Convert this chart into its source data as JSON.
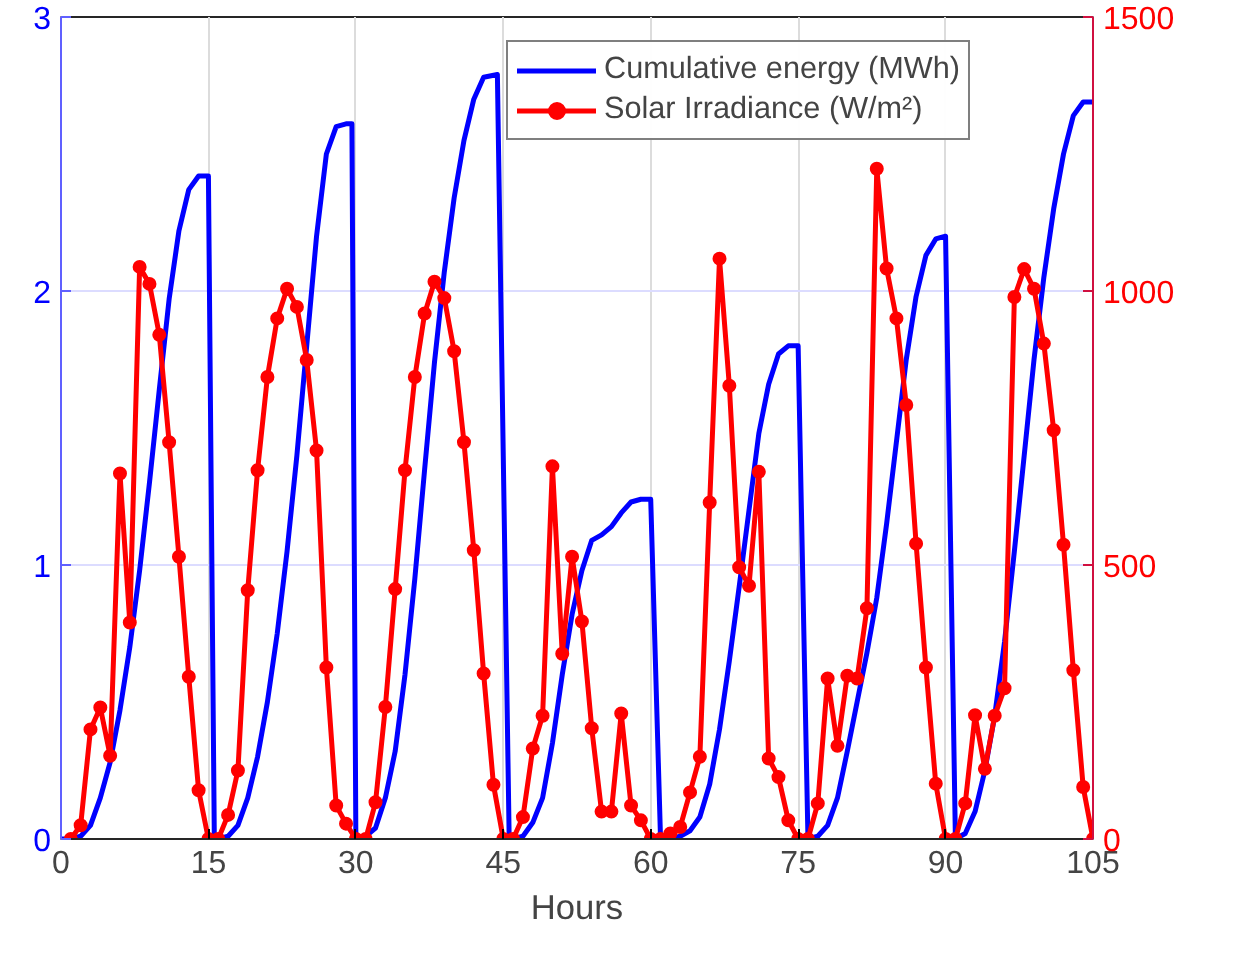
{
  "chart_data": {
    "type": "line",
    "xlabel": "Hours",
    "xlim": [
      0,
      105
    ],
    "xticks": [
      0,
      15,
      30,
      45,
      60,
      75,
      90,
      105
    ],
    "ylim": [
      0,
      3
    ],
    "yticks": [
      0,
      1,
      2,
      3
    ],
    "y2lim": [
      0,
      1500
    ],
    "y2ticks": [
      0,
      500,
      1000,
      1500
    ],
    "grid": true,
    "legend": "top right",
    "line_style": "solid",
    "series": [
      {
        "name": "Cumulative energy (MWh)",
        "color": "#0000ff",
        "marker": "none",
        "x": [
          0,
          1,
          2,
          3,
          4,
          5,
          6,
          7,
          8,
          9,
          10,
          11,
          12,
          13,
          14,
          15,
          15.6,
          16,
          17,
          18,
          19,
          20,
          21,
          22,
          23,
          24,
          25,
          26,
          27,
          28,
          29,
          29.6,
          30,
          31,
          32,
          33,
          34,
          35,
          36,
          37,
          38,
          39,
          40,
          41,
          42,
          43,
          44.4,
          45.6,
          46,
          47,
          48,
          49,
          50,
          51,
          52,
          53,
          54,
          55,
          56,
          57,
          58,
          59,
          60,
          61,
          62,
          63,
          64,
          65,
          66,
          67,
          68,
          69,
          70,
          71,
          72,
          73,
          74,
          75,
          76,
          77,
          78,
          79,
          80,
          81,
          82,
          83,
          84,
          85,
          86,
          87,
          88,
          89,
          90,
          91,
          92,
          93,
          94,
          95,
          96,
          97,
          98,
          99,
          100,
          101,
          102,
          103,
          104,
          105
        ],
        "values": [
          0,
          0,
          0.01,
          0.05,
          0.15,
          0.28,
          0.47,
          0.7,
          0.98,
          1.3,
          1.64,
          1.97,
          2.22,
          2.37,
          2.42,
          2.42,
          0,
          0,
          0.01,
          0.05,
          0.15,
          0.3,
          0.5,
          0.75,
          1.05,
          1.4,
          1.8,
          2.2,
          2.5,
          2.6,
          2.61,
          2.61,
          0,
          0.01,
          0.04,
          0.15,
          0.32,
          0.6,
          0.95,
          1.35,
          1.74,
          2.07,
          2.34,
          2.55,
          2.7,
          2.78,
          2.79,
          0,
          0,
          0.01,
          0.06,
          0.15,
          0.35,
          0.6,
          0.82,
          0.98,
          1.09,
          1.11,
          1.14,
          1.19,
          1.23,
          1.24,
          1.24,
          0,
          0,
          0.01,
          0.03,
          0.08,
          0.2,
          0.4,
          0.65,
          0.92,
          1.2,
          1.48,
          1.66,
          1.77,
          1.8,
          1.8,
          0,
          0.01,
          0.05,
          0.15,
          0.32,
          0.5,
          0.68,
          0.88,
          1.15,
          1.45,
          1.75,
          1.98,
          2.13,
          2.19,
          2.2,
          0,
          0.02,
          0.1,
          0.25,
          0.45,
          0.72,
          1.05,
          1.4,
          1.75,
          2.05,
          2.3,
          2.5,
          2.64,
          2.69,
          2.69
        ]
      },
      {
        "name": "Solar Irradiance (W/m²)",
        "color": "#ff0000",
        "marker": "circle",
        "axis": "y2",
        "x": [
          1,
          2,
          3,
          4,
          5,
          6,
          7,
          8,
          9,
          10,
          11,
          12,
          13,
          14,
          15,
          16,
          17,
          18,
          19,
          20,
          21,
          22,
          23,
          24,
          25,
          26,
          27,
          28,
          29,
          30,
          31,
          32,
          33,
          34,
          35,
          36,
          37,
          38,
          39,
          40,
          41,
          42,
          43,
          44,
          45,
          46,
          47,
          48,
          49,
          50,
          51,
          52,
          53,
          54,
          55,
          56,
          57,
          58,
          59,
          60,
          61,
          62,
          63,
          64,
          65,
          66,
          67,
          68,
          69,
          70,
          71,
          72,
          73,
          74,
          75,
          76,
          77,
          78,
          79,
          80,
          81,
          82,
          83,
          84,
          85,
          86,
          87,
          88,
          89,
          90,
          91,
          92,
          93,
          94,
          95,
          96,
          97,
          98,
          99,
          100,
          101,
          102,
          103,
          104,
          105
        ],
        "values": [
          0,
          25,
          200,
          240,
          152,
          667,
          395,
          1044,
          1013,
          920,
          724,
          515,
          296,
          89,
          0,
          0,
          44,
          125,
          454,
          673,
          843,
          950,
          1004,
          971,
          874,
          709,
          313,
          61,
          28,
          0,
          0,
          67,
          241,
          456,
          673,
          843,
          959,
          1017,
          987,
          890,
          724,
          527,
          302,
          99,
          0,
          0,
          40,
          165,
          225,
          680,
          338,
          515,
          397,
          202,
          50,
          50,
          229,
          61,
          34,
          0,
          0,
          10,
          22,
          85,
          150,
          614,
          1059,
          827,
          496,
          462,
          670,
          147,
          113,
          34,
          0,
          0,
          65,
          293,
          170,
          298,
          293,
          421,
          1223,
          1041,
          950,
          792,
          539,
          313,
          101,
          0,
          0,
          65,
          226,
          128,
          225,
          275,
          989,
          1040,
          1004,
          904,
          746,
          537,
          308,
          95,
          0
        ]
      }
    ]
  }
}
